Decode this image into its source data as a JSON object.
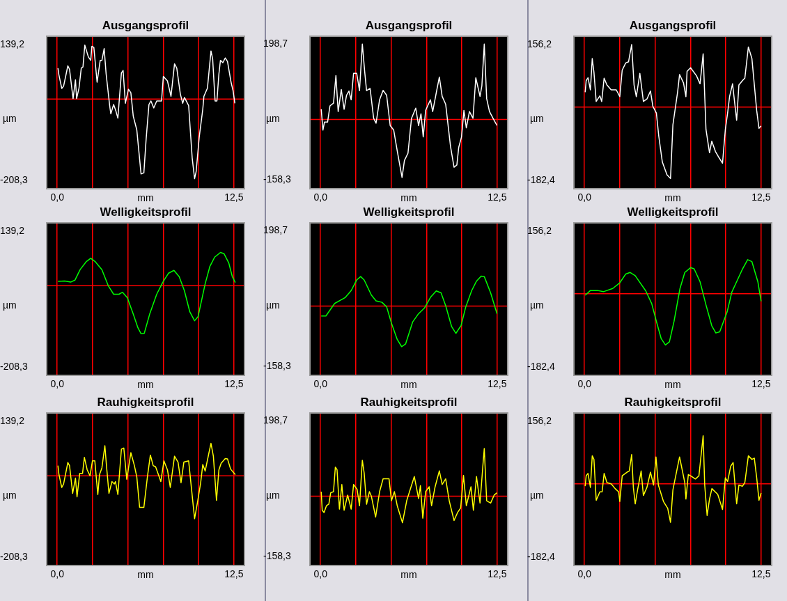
{
  "chart_data": [
    {
      "type": "line",
      "title": "Ausgangsprofil",
      "xlabel": "mm",
      "ylabel": "µm",
      "color": "#ffffff",
      "grid": "x",
      "xlim": [
        -0.7,
        13.2
      ],
      "ylim": [
        -228,
        159
      ],
      "xticks": [
        {
          "value": 0,
          "label": "0,0"
        },
        {
          "value": 2.5,
          "label": null
        },
        {
          "value": 5,
          "label": null
        },
        {
          "value": 7.5,
          "label": null
        },
        {
          "value": 10,
          "label": null
        },
        {
          "value": 12.5,
          "label": "12,5"
        }
      ],
      "yticks": [
        {
          "value": 139.2,
          "label": "139,2"
        },
        {
          "value": -208.3,
          "label": "-208,3"
        }
      ],
      "ref_lines": [
        {
          "axis": "y",
          "value": 0,
          "color": "#ff0000"
        }
      ],
      "x": [
        0.05,
        0.12,
        0.32,
        0.45,
        0.75,
        0.87,
        1.12,
        1.29,
        1.37,
        1.54,
        1.7,
        1.82,
        1.95,
        2.2,
        2.37,
        2.45,
        2.59,
        2.82,
        3.04,
        3.16,
        3.32,
        3.46,
        3.71,
        3.79,
        3.99,
        4.16,
        4.29,
        4.54,
        4.66,
        4.82,
        5.04,
        5.21,
        5.38,
        5.63,
        5.79,
        5.93,
        6.13,
        6.29,
        6.49,
        6.63,
        6.83,
        7.04,
        7.38,
        7.51,
        7.8,
        8.05,
        8.3,
        8.46,
        8.71,
        8.88,
        9.0,
        9.3,
        9.55,
        9.72,
        9.83,
        10.05,
        10.3,
        10.38,
        10.63,
        10.88,
        11.0,
        11.17,
        11.3,
        11.44,
        11.55,
        11.72,
        11.89,
        12.05,
        12.3,
        12.44,
        12.57
      ],
      "values": [
        79,
        61,
        27,
        33,
        85,
        76,
        1,
        49,
        1,
        28,
        79,
        82,
        138,
        108,
        99,
        135,
        132,
        43,
        99,
        99,
        129,
        64,
        -17,
        -38,
        -14,
        -32,
        -49,
        67,
        73,
        -11,
        25,
        16,
        -44,
        -79,
        -139,
        -192,
        -189,
        -103,
        -14,
        -5,
        -23,
        -5,
        -5,
        58,
        46,
        7,
        90,
        79,
        13,
        -11,
        4,
        -17,
        -151,
        -204,
        -186,
        -97,
        -26,
        7,
        28,
        123,
        102,
        -5,
        -5,
        64,
        99,
        93,
        105,
        96,
        43,
        22,
        -11
      ]
    },
    {
      "type": "line",
      "title": "Ausgangsprofil",
      "xlabel": "mm",
      "ylabel": "µm",
      "color": "#ffffff",
      "grid": "x",
      "xlim": [
        -0.7,
        13.2
      ],
      "ylim": [
        -181,
        218
      ],
      "xticks": [
        {
          "value": 0,
          "label": "0,0"
        },
        {
          "value": 2.5,
          "label": null
        },
        {
          "value": 5,
          "label": null
        },
        {
          "value": 7.5,
          "label": null
        },
        {
          "value": 10,
          "label": null
        },
        {
          "value": 12.5,
          "label": "12,5"
        }
      ],
      "yticks": [
        {
          "value": 198.7,
          "label": "198,7"
        },
        {
          "value": -158.3,
          "label": "-158,3"
        }
      ],
      "ref_lines": [
        {
          "axis": "y",
          "value": 0,
          "color": "#ff0000"
        }
      ],
      "x": [
        0.05,
        0.17,
        0.28,
        0.5,
        0.67,
        0.92,
        1.09,
        1.25,
        1.47,
        1.67,
        1.84,
        2.01,
        2.17,
        2.34,
        2.56,
        2.76,
        2.96,
        3.13,
        3.26,
        3.51,
        3.76,
        3.93,
        4.18,
        4.43,
        4.68,
        4.93,
        5.18,
        5.43,
        5.77,
        5.94,
        6.19,
        6.44,
        6.74,
        6.94,
        7.11,
        7.27,
        7.44,
        7.78,
        7.94,
        8.19,
        8.41,
        8.61,
        8.86,
        9.2,
        9.45,
        9.65,
        9.78,
        9.98,
        10.15,
        10.32,
        10.54,
        10.79,
        10.99,
        11.29,
        11.42,
        11.59,
        11.76,
        11.96,
        12.21,
        12.49
      ],
      "values": [
        27,
        -28,
        -7,
        -7,
        36,
        43,
        116,
        21,
        79,
        27,
        64,
        75,
        52,
        122,
        122,
        76,
        199,
        125,
        76,
        82,
        3,
        -10,
        52,
        77,
        64,
        -16,
        -28,
        -83,
        -153,
        -108,
        -89,
        3,
        30,
        -16,
        15,
        -46,
        24,
        52,
        21,
        70,
        112,
        61,
        40,
        -71,
        -126,
        -120,
        -74,
        -46,
        24,
        -22,
        21,
        3,
        110,
        61,
        89,
        199,
        55,
        21,
        3,
        -16
      ]
    },
    {
      "type": "line",
      "title": "Ausgangsprofil",
      "xlabel": "mm",
      "ylabel": "µm",
      "color": "#ffffff",
      "grid": "x",
      "xlim": [
        -0.7,
        13.2
      ],
      "ylim": [
        -202,
        175
      ],
      "xticks": [
        {
          "value": 0,
          "label": "0,0"
        },
        {
          "value": 2.5,
          "label": null
        },
        {
          "value": 5,
          "label": null
        },
        {
          "value": 7.5,
          "label": null
        },
        {
          "value": 10,
          "label": null
        },
        {
          "value": 12.5,
          "label": "12,5"
        }
      ],
      "yticks": [
        {
          "value": 156.2,
          "label": "156,2"
        },
        {
          "value": -182.4,
          "label": "-182,4"
        }
      ],
      "ref_lines": [
        {
          "axis": "y",
          "value": 0,
          "color": "#ff0000"
        }
      ],
      "x": [
        0.05,
        0.12,
        0.25,
        0.42,
        0.55,
        0.67,
        0.83,
        1.09,
        1.22,
        1.39,
        1.59,
        1.89,
        2.25,
        2.5,
        2.67,
        2.92,
        3.12,
        3.34,
        3.51,
        3.67,
        3.92,
        4.17,
        4.42,
        4.67,
        4.84,
        5.09,
        5.26,
        5.51,
        5.84,
        6.09,
        6.26,
        6.59,
        6.73,
        7.01,
        7.18,
        7.26,
        7.51,
        7.93,
        8.18,
        8.4,
        8.6,
        8.85,
        9.01,
        9.27,
        9.52,
        9.77,
        9.97,
        10.13,
        10.27,
        10.48,
        10.77,
        10.93,
        11.18,
        11.35,
        11.6,
        11.85,
        12.19,
        12.35,
        12.5
      ],
      "values": [
        37,
        66,
        73,
        43,
        121,
        87,
        14,
        28,
        14,
        72,
        55,
        43,
        43,
        26,
        92,
        110,
        113,
        156,
        55,
        26,
        84,
        14,
        20,
        40,
        2,
        -15,
        -73,
        -137,
        -169,
        -178,
        -44,
        37,
        81,
        60,
        26,
        89,
        98,
        78,
        58,
        133,
        -56,
        -114,
        -85,
        -111,
        -126,
        -140,
        -56,
        -15,
        26,
        58,
        -33,
        55,
        66,
        72,
        150,
        121,
        -9,
        -53,
        -47
      ]
    },
    {
      "type": "line",
      "title": "Welligkeitsprofil",
      "xlabel": "mm",
      "ylabel": "µm",
      "color": "#00ff00",
      "grid": "x",
      "xlim": [
        -0.7,
        13.2
      ],
      "ylim": [
        -228,
        159
      ],
      "xticks": [
        {
          "value": 0,
          "label": "0,0"
        },
        {
          "value": 2.5,
          "label": null
        },
        {
          "value": 5,
          "label": null
        },
        {
          "value": 7.5,
          "label": null
        },
        {
          "value": 10,
          "label": null
        },
        {
          "value": 12.5,
          "label": "12,5"
        }
      ],
      "yticks": [
        {
          "value": 139.2,
          "label": "139,2"
        },
        {
          "value": -208.3,
          "label": "-208,3"
        }
      ],
      "ref_lines": [
        {
          "axis": "y",
          "value": 0,
          "color": "#ff0000"
        }
      ],
      "x": [
        0.05,
        0.53,
        0.95,
        1.25,
        1.62,
        2.04,
        2.37,
        2.7,
        3.16,
        3.62,
        3.99,
        4.37,
        4.62,
        4.96,
        5.38,
        5.71,
        5.93,
        6.16,
        6.54,
        7.04,
        7.46,
        7.88,
        8.26,
        8.63,
        9.0,
        9.38,
        9.72,
        9.97,
        10.47,
        10.8,
        11.14,
        11.55,
        11.8,
        12.14,
        12.39,
        12.6
      ],
      "values": [
        11,
        12,
        9,
        14,
        41,
        61,
        70,
        61,
        41,
        -1,
        -22,
        -22,
        -17,
        -31,
        -73,
        -108,
        -123,
        -122,
        -73,
        -22,
        8,
        32,
        39,
        23,
        -13,
        -67,
        -90,
        -79,
        5,
        49,
        73,
        85,
        82,
        58,
        23,
        8
      ]
    },
    {
      "type": "line",
      "title": "Welligkeitsprofil",
      "xlabel": "mm",
      "ylabel": "µm",
      "color": "#00ff00",
      "grid": "x",
      "xlim": [
        -0.7,
        13.2
      ],
      "ylim": [
        -181,
        218
      ],
      "xticks": [
        {
          "value": 0,
          "label": "0,0"
        },
        {
          "value": 2.5,
          "label": null
        },
        {
          "value": 5,
          "label": null
        },
        {
          "value": 7.5,
          "label": null
        },
        {
          "value": 10,
          "label": null
        },
        {
          "value": 12.5,
          "label": "12,5"
        }
      ],
      "yticks": [
        {
          "value": 198.7,
          "label": "198,7"
        },
        {
          "value": -158.3,
          "label": "-158,3"
        }
      ],
      "ref_lines": [
        {
          "axis": "y",
          "value": 0,
          "color": "#ff0000"
        }
      ],
      "x": [
        0.05,
        0.38,
        1.0,
        1.76,
        2.17,
        2.56,
        2.84,
        3.09,
        3.6,
        3.93,
        4.35,
        4.68,
        5.02,
        5.43,
        5.74,
        6.02,
        6.52,
        6.94,
        7.36,
        7.78,
        8.19,
        8.53,
        8.86,
        9.28,
        9.58,
        9.95,
        10.28,
        10.7,
        11.04,
        11.37,
        11.59,
        12.04,
        12.49
      ],
      "values": [
        -26,
        -26,
        7,
        23,
        41,
        69,
        78,
        69,
        29,
        14,
        10,
        -2,
        -45,
        -88,
        -107,
        -100,
        -42,
        -20,
        -5,
        23,
        40,
        35,
        1,
        -54,
        -72,
        -51,
        -2,
        41,
        66,
        79,
        78,
        35,
        -20
      ]
    },
    {
      "type": "line",
      "title": "Welligkeitsprofil",
      "xlabel": "mm",
      "ylabel": "µm",
      "color": "#00ff00",
      "grid": "x",
      "xlim": [
        -0.7,
        13.2
      ],
      "ylim": [
        -202,
        175
      ],
      "xticks": [
        {
          "value": 0,
          "label": "0,0"
        },
        {
          "value": 2.5,
          "label": null
        },
        {
          "value": 5,
          "label": null
        },
        {
          "value": 7.5,
          "label": null
        },
        {
          "value": 10,
          "label": null
        },
        {
          "value": 12.5,
          "label": "12,5"
        }
      ],
      "yticks": [
        {
          "value": 156.2,
          "label": "156,2"
        },
        {
          "value": -182.4,
          "label": "-182,4"
        }
      ],
      "ref_lines": [
        {
          "axis": "y",
          "value": 0,
          "color": "#ff0000"
        }
      ],
      "x": [
        0.05,
        0.42,
        0.92,
        1.34,
        2.0,
        2.5,
        2.92,
        3.22,
        3.59,
        4.34,
        4.76,
        5.09,
        5.43,
        5.73,
        6.01,
        6.34,
        6.76,
        7.1,
        7.51,
        7.76,
        8.18,
        8.6,
        9.01,
        9.3,
        9.57,
        10.1,
        10.43,
        10.85,
        11.19,
        11.55,
        11.85,
        12.27,
        12.5
      ],
      "values": [
        -4,
        8,
        8,
        5,
        13,
        27,
        49,
        53,
        45,
        7,
        -25,
        -69,
        -112,
        -128,
        -120,
        -69,
        13,
        53,
        65,
        62,
        30,
        -28,
        -80,
        -98,
        -95,
        -45,
        4,
        36,
        62,
        85,
        80,
        30,
        -19
      ]
    },
    {
      "type": "line",
      "title": "Rauhigkeitsprofil",
      "xlabel": "mm",
      "ylabel": "µm",
      "color": "#ffff00",
      "grid": "x",
      "xlim": [
        -0.7,
        13.2
      ],
      "ylim": [
        -228,
        159
      ],
      "xticks": [
        {
          "value": 0,
          "label": "0,0"
        },
        {
          "value": 2.5,
          "label": null
        },
        {
          "value": 5,
          "label": null
        },
        {
          "value": 7.5,
          "label": null
        },
        {
          "value": 10,
          "label": null
        },
        {
          "value": 12.5,
          "label": "12,5"
        }
      ],
      "yticks": [
        {
          "value": 139.2,
          "label": "139,2"
        },
        {
          "value": -208.3,
          "label": "-208,3"
        }
      ],
      "ref_lines": [
        {
          "axis": "y",
          "value": 0,
          "color": "#ff0000"
        }
      ],
      "x": [
        0.05,
        0.12,
        0.32,
        0.45,
        0.75,
        0.87,
        1.09,
        1.29,
        1.4,
        1.59,
        1.79,
        1.92,
        2.12,
        2.32,
        2.49,
        2.66,
        2.87,
        2.99,
        3.16,
        3.37,
        3.49,
        3.66,
        3.87,
        4.04,
        4.12,
        4.29,
        4.54,
        4.71,
        4.92,
        5.21,
        5.46,
        5.63,
        5.83,
        6.13,
        6.38,
        6.59,
        6.79,
        6.96,
        7.16,
        7.33,
        7.55,
        7.8,
        8.0,
        8.3,
        8.55,
        8.76,
        8.96,
        9.3,
        9.5,
        9.72,
        9.95,
        10.15,
        10.3,
        10.47,
        10.72,
        10.88,
        11.05,
        11.27,
        11.44,
        11.6,
        11.89,
        12.05,
        12.27,
        12.6
      ],
      "values": [
        26,
        3,
        -30,
        -21,
        34,
        26,
        -45,
        -6,
        -54,
        6,
        6,
        47,
        15,
        0,
        38,
        38,
        -48,
        3,
        20,
        77,
        23,
        -45,
        -15,
        -21,
        -15,
        -48,
        68,
        71,
        -9,
        59,
        26,
        -3,
        -81,
        -81,
        -3,
        53,
        26,
        23,
        3,
        -15,
        38,
        15,
        -30,
        50,
        35,
        -18,
        35,
        38,
        -33,
        -110,
        -63,
        -18,
        29,
        12,
        56,
        83,
        50,
        -63,
        15,
        32,
        44,
        43,
        17,
        3
      ]
    },
    {
      "type": "line",
      "title": "Rauhigkeitsprofil",
      "xlabel": "mm",
      "ylabel": "µm",
      "color": "#ffff00",
      "grid": "x",
      "xlim": [
        -0.7,
        13.2
      ],
      "ylim": [
        -181,
        218
      ],
      "xticks": [
        {
          "value": 0,
          "label": "0,0"
        },
        {
          "value": 2.5,
          "label": null
        },
        {
          "value": 5,
          "label": null
        },
        {
          "value": 7.5,
          "label": null
        },
        {
          "value": 10,
          "label": null
        },
        {
          "value": 12.5,
          "label": "12,5"
        }
      ],
      "yticks": [
        {
          "value": 198.7,
          "label": "198,7"
        },
        {
          "value": -158.3,
          "label": "-158,3"
        }
      ],
      "ref_lines": [
        {
          "axis": "y",
          "value": 0,
          "color": "#ff0000"
        }
      ],
      "x": [
        0.05,
        0.12,
        0.25,
        0.42,
        0.59,
        0.72,
        0.92,
        1.05,
        1.17,
        1.34,
        1.51,
        1.67,
        1.92,
        2.17,
        2.34,
        2.59,
        2.76,
        2.96,
        3.09,
        3.26,
        3.46,
        3.6,
        3.9,
        4.18,
        4.43,
        4.85,
        5.02,
        5.23,
        5.43,
        5.8,
        6.1,
        6.35,
        6.64,
        6.94,
        7.07,
        7.24,
        7.44,
        7.69,
        7.86,
        8.11,
        8.41,
        8.61,
        8.86,
        9.11,
        9.45,
        9.7,
        9.92,
        10.12,
        10.32,
        10.65,
        10.82,
        11.04,
        11.29,
        11.49,
        11.59,
        11.76,
        12.04,
        12.29,
        12.49
      ],
      "values": [
        12,
        -37,
        -43,
        -25,
        -21,
        9,
        12,
        77,
        70,
        -34,
        31,
        -37,
        3,
        -34,
        31,
        18,
        -25,
        95,
        61,
        -21,
        12,
        0,
        -55,
        12,
        46,
        46,
        -12,
        12,
        -25,
        -70,
        -12,
        18,
        52,
        -6,
        28,
        -58,
        12,
        25,
        -25,
        25,
        67,
        31,
        46,
        -12,
        -64,
        -43,
        -31,
        55,
        -25,
        25,
        -37,
        52,
        -18,
        80,
        126,
        -12,
        -18,
        3,
        9
      ]
    },
    {
      "type": "line",
      "title": "Rauhigkeitsprofil",
      "xlabel": "mm",
      "ylabel": "µm",
      "color": "#ffff00",
      "grid": "x",
      "xlim": [
        -0.7,
        13.2
      ],
      "ylim": [
        -202,
        175
      ],
      "xticks": [
        {
          "value": 0,
          "label": "0,0"
        },
        {
          "value": 2.5,
          "label": null
        },
        {
          "value": 5,
          "label": null
        },
        {
          "value": 7.5,
          "label": null
        },
        {
          "value": 10,
          "label": null
        },
        {
          "value": 12.5,
          "label": "12,5"
        }
      ],
      "yticks": [
        {
          "value": 156.2,
          "label": "156,2"
        },
        {
          "value": -182.4,
          "label": "-182,4"
        }
      ],
      "ref_lines": [
        {
          "axis": "y",
          "value": 0,
          "color": "#ff0000"
        }
      ],
      "x": [
        0.05,
        0.12,
        0.25,
        0.42,
        0.55,
        0.67,
        0.83,
        1.09,
        1.25,
        1.39,
        1.59,
        1.89,
        2.17,
        2.42,
        2.5,
        2.67,
        3.01,
        3.17,
        3.34,
        3.46,
        3.59,
        3.76,
        4.01,
        4.17,
        4.42,
        4.67,
        4.89,
        5.06,
        5.23,
        5.59,
        5.89,
        6.09,
        6.26,
        6.43,
        6.73,
        7.1,
        7.18,
        7.35,
        7.6,
        7.85,
        8.1,
        8.4,
        8.51,
        8.68,
        8.85,
        9.02,
        9.43,
        9.77,
        9.97,
        10.13,
        10.35,
        10.52,
        10.77,
        10.93,
        11.18,
        11.35,
        11.6,
        11.85,
        12.02,
        12.19,
        12.35,
        12.5
      ],
      "values": [
        -6,
        20,
        26,
        -9,
        70,
        61,
        -41,
        -20,
        -20,
        26,
        3,
        0,
        -12,
        -20,
        -44,
        20,
        29,
        32,
        73,
        -9,
        -50,
        -15,
        32,
        -29,
        -9,
        29,
        -3,
        67,
        -3,
        -44,
        -61,
        -96,
        -15,
        15,
        67,
        3,
        -38,
        23,
        18,
        12,
        20,
        120,
        -3,
        -79,
        -38,
        -12,
        -26,
        -64,
        15,
        6,
        44,
        53,
        -50,
        -3,
        -6,
        3,
        70,
        61,
        64,
        15,
        -41,
        -23
      ]
    }
  ]
}
